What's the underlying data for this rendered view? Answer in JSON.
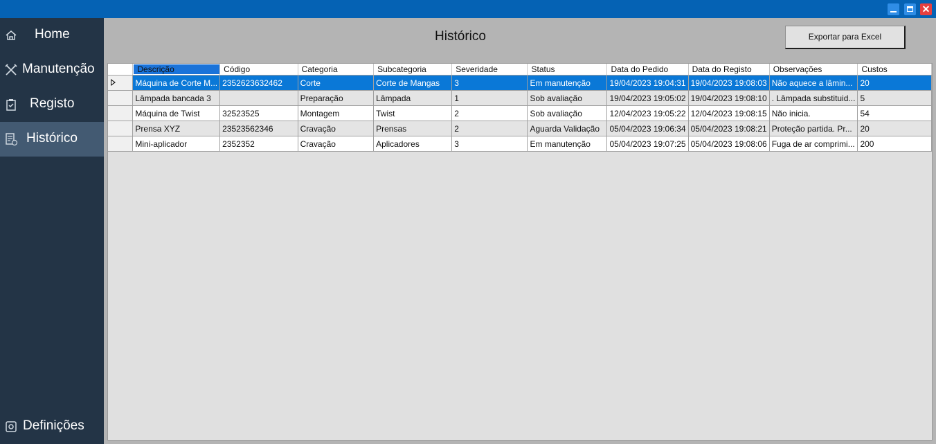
{
  "window": {
    "close_glyph": "✕"
  },
  "sidebar": {
    "items": [
      {
        "label": "Home",
        "icon": "home-icon"
      },
      {
        "label": "Manutenção",
        "icon": "tools-icon"
      },
      {
        "label": "Registo",
        "icon": "clipboard-icon"
      },
      {
        "label": "Histórico",
        "icon": "history-icon",
        "active": true
      },
      {
        "label": "Definições",
        "icon": "gear-icon"
      }
    ]
  },
  "main": {
    "title": "Histórico",
    "export_label": "Exportar para Excel"
  },
  "table": {
    "columns": [
      "Descrição",
      "Código",
      "Categoria",
      "Subcategoria",
      "Severidade",
      "Status",
      "Data do Pedido",
      "Data do Registo",
      "Observações",
      "Custos"
    ],
    "rows": [
      [
        "Máquina de Corte M...",
        "2352623632462",
        "Corte",
        "Corte de Mangas",
        "3",
        "Em manutenção",
        "19/04/2023 19:04:31",
        "19/04/2023 19:08:03",
        "Não aquece a lâmin...",
        "20"
      ],
      [
        "Lâmpada bancada 3",
        "",
        "Preparação",
        "Lâmpada",
        "1",
        "Sob avaliação",
        "19/04/2023 19:05:02",
        "19/04/2023 19:08:10",
        ". Lâmpada substituid...",
        "5"
      ],
      [
        "Máquina de Twist",
        "32523525",
        "Montagem",
        "Twist",
        "2",
        "Sob avaliação",
        "12/04/2023 19:05:22",
        "12/04/2023 19:08:15",
        "Não inicia.",
        "54"
      ],
      [
        "Prensa XYZ",
        "23523562346",
        "Cravação",
        "Prensas",
        "2",
        "Aguarda Validação",
        "05/04/2023 19:06:34",
        "05/04/2023 19:08:21",
        "Proteção partida. Pr...",
        "20"
      ],
      [
        "Mini-aplicador",
        "2352352",
        "Cravação",
        "Aplicadores",
        "3",
        "Em manutenção",
        "05/04/2023 19:07:25",
        "05/04/2023 19:08:06",
        "Fuga de ar comprimi...",
        "200"
      ]
    ],
    "selected_row": 0
  },
  "colors": {
    "titlebar": "#0562b4",
    "sidebar": "#233446",
    "sidebar_active": "#435a72",
    "selection": "#0a78d7"
  }
}
